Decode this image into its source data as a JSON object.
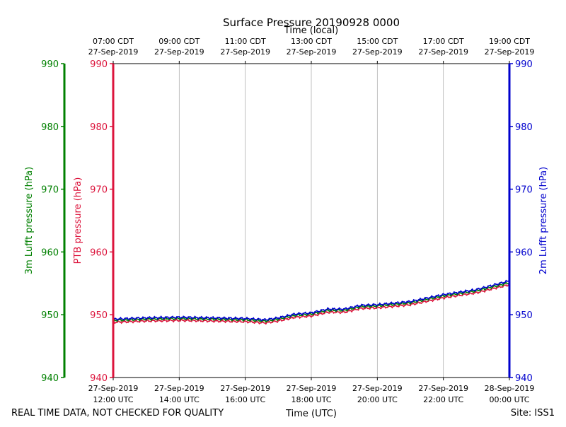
{
  "chart_data": {
    "type": "line",
    "title": "Surface Pressure 20190928 0000",
    "top_xlabel": "Time (local)",
    "xlabel": "Time (UTC)",
    "top_ticks": [
      {
        "line1": "07:00 CDT",
        "line2": "27-Sep-2019"
      },
      {
        "line1": "09:00 CDT",
        "line2": "27-Sep-2019"
      },
      {
        "line1": "11:00 CDT",
        "line2": "27-Sep-2019"
      },
      {
        "line1": "13:00 CDT",
        "line2": "27-Sep-2019"
      },
      {
        "line1": "15:00 CDT",
        "line2": "27-Sep-2019"
      },
      {
        "line1": "17:00 CDT",
        "line2": "27-Sep-2019"
      },
      {
        "line1": "19:00 CDT",
        "line2": "27-Sep-2019"
      }
    ],
    "bottom_ticks": [
      {
        "line1": "27-Sep-2019",
        "line2": "12:00 UTC"
      },
      {
        "line1": "27-Sep-2019",
        "line2": "14:00 UTC"
      },
      {
        "line1": "27-Sep-2019",
        "line2": "16:00 UTC"
      },
      {
        "line1": "27-Sep-2019",
        "line2": "18:00 UTC"
      },
      {
        "line1": "27-Sep-2019",
        "line2": "20:00 UTC"
      },
      {
        "line1": "27-Sep-2019",
        "line2": "22:00 UTC"
      },
      {
        "line1": "28-Sep-2019",
        "line2": "00:00 UTC"
      }
    ],
    "x_hours_utc": [
      12,
      14,
      16,
      18,
      20,
      22,
      24
    ],
    "xlim": [
      12,
      24
    ],
    "ylim": [
      940,
      990
    ],
    "yticks": [
      940,
      950,
      960,
      970,
      980,
      990
    ],
    "axes": {
      "outer_left": {
        "label": "3m Lufft pressure (hPa)",
        "color": "#008000"
      },
      "inner_left": {
        "label": "PTB pressure (hPa)",
        "color": "#dc143c"
      },
      "right": {
        "label": "2m Lufft pressure (hPa)",
        "color": "#0000cd"
      }
    },
    "grid": true,
    "anchor_x": [
      12.0,
      13.0,
      14.0,
      15.0,
      16.0,
      16.6,
      17.0,
      17.5,
      18.0,
      18.5,
      19.0,
      19.5,
      20.0,
      21.0,
      22.0,
      23.0,
      24.0
    ],
    "series": [
      {
        "name": "2m Lufft pressure",
        "color": "#0000cd",
        "values": [
          949.3,
          949.5,
          949.6,
          949.5,
          949.4,
          949.2,
          949.5,
          950.1,
          950.3,
          950.9,
          950.9,
          951.5,
          951.6,
          952.1,
          953.2,
          954.0,
          955.4
        ]
      },
      {
        "name": "3m Lufft pressure",
        "color": "#008000",
        "values": [
          949.1,
          949.3,
          949.4,
          949.3,
          949.2,
          949.0,
          949.3,
          949.9,
          950.1,
          950.7,
          950.7,
          951.3,
          951.4,
          951.9,
          953.0,
          953.8,
          955.1
        ]
      },
      {
        "name": "PTB pressure",
        "color": "#dc143c",
        "values": [
          948.8,
          949.0,
          949.1,
          949.0,
          948.9,
          948.7,
          949.0,
          949.6,
          949.8,
          950.4,
          950.4,
          951.0,
          951.1,
          951.6,
          952.7,
          953.5,
          954.8
        ]
      }
    ]
  },
  "footer": {
    "quality_note": "REAL TIME DATA, NOT CHECKED FOR QUALITY",
    "site": "Site: ISS1"
  }
}
